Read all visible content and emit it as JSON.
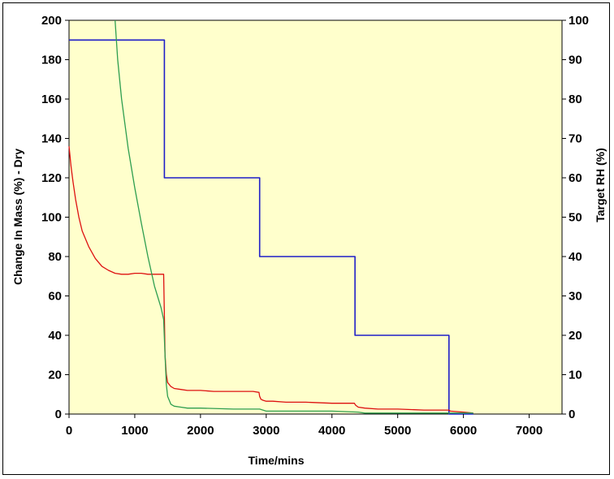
{
  "chart_data": {
    "type": "line",
    "title": "",
    "xlabel": "Time/mins",
    "ylabel_left": "Change In Mass (%) - Dry",
    "ylabel_right": "Target RH (%)",
    "xlim": [
      0,
      7500
    ],
    "ylim_left": [
      0,
      200
    ],
    "ylim_right": [
      0,
      100
    ],
    "x_ticks": [
      "0",
      "1000",
      "2000",
      "3000",
      "4000",
      "5000",
      "6000",
      "7000"
    ],
    "y_left_ticks": [
      "0",
      "20",
      "40",
      "60",
      "80",
      "100",
      "120",
      "140",
      "160",
      "180",
      "200"
    ],
    "y_right_ticks": [
      "0",
      "10",
      "20",
      "30",
      "40",
      "50",
      "60",
      "70",
      "80",
      "90",
      "100"
    ],
    "grid": false,
    "legend": "none",
    "colors": {
      "plot_background": "#FFFFCC",
      "frame_border": "#000000",
      "target_rh": "#1F1FC8",
      "red_series": "#DD1010",
      "green_series": "#2E9E4F"
    },
    "series": [
      {
        "axis": "right",
        "color": "#1F1FC8",
        "step": true,
        "x": [
          0,
          1450,
          1450,
          2900,
          2900,
          4350,
          4350,
          5780,
          5780,
          6150
        ],
        "y": [
          95,
          95,
          60,
          60,
          40,
          40,
          20,
          20,
          0,
          0
        ]
      },
      {
        "axis": "left",
        "color": "#DD1010",
        "step": false,
        "x": [
          0,
          30,
          60,
          100,
          150,
          200,
          300,
          400,
          500,
          600,
          700,
          800,
          900,
          1000,
          1100,
          1200,
          1300,
          1440,
          1450,
          1460,
          1480,
          1500,
          1550,
          1600,
          1700,
          1800,
          2000,
          2200,
          2500,
          2800,
          2890,
          2900,
          2920,
          2950,
          3000,
          3100,
          3300,
          3600,
          4000,
          4300,
          4340,
          4360,
          4400,
          4500,
          4700,
          5000,
          5400,
          5700,
          5780,
          5800,
          6000,
          6150
        ],
        "y": [
          136,
          126,
          118,
          109,
          100,
          93,
          85,
          79,
          75,
          73,
          71.5,
          71,
          71,
          71.5,
          71.5,
          71,
          71,
          71,
          50,
          30,
          20,
          16,
          14,
          13,
          12.5,
          12,
          12,
          11.5,
          11.5,
          11.5,
          11,
          9,
          7.5,
          7,
          6.5,
          6.5,
          6,
          6,
          5.5,
          5.5,
          5.5,
          4.5,
          3.5,
          3,
          2.5,
          2.5,
          2,
          2,
          2,
          1.5,
          1,
          0.5
        ]
      },
      {
        "axis": "left",
        "color": "#2E9E4F",
        "step": false,
        "x": [
          700,
          740,
          800,
          900,
          1000,
          1100,
          1200,
          1300,
          1400,
          1440,
          1460,
          1480,
          1500,
          1550,
          1600,
          1700,
          1800,
          2000,
          2500,
          2900,
          3000,
          4000,
          4400,
          4500,
          6000,
          6150
        ],
        "y": [
          200,
          180,
          160,
          135,
          115,
          97,
          80,
          65,
          54,
          48,
          30,
          15,
          9,
          5,
          4,
          3.5,
          3,
          3,
          2.5,
          2.5,
          1.5,
          1.5,
          1,
          0.5,
          0.5,
          0.5
        ]
      }
    ]
  }
}
